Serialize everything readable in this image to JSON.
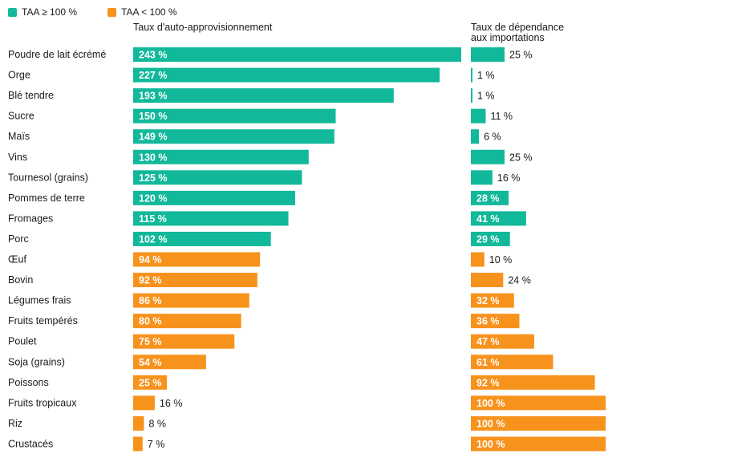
{
  "legend": {
    "items": [
      {
        "label": "TAA ≥ 100 %",
        "color": "#12b89a"
      },
      {
        "label": "TAA < 100 %",
        "color": "#f7921c"
      }
    ]
  },
  "panels": {
    "left_title": "Taux d'auto-approvisionnement",
    "right_title_line1": "Taux de dépendance",
    "right_title_line2": "aux importations"
  },
  "chart_data": {
    "type": "bar",
    "orientation": "horizontal",
    "categories": [
      "Poudre de lait écrémé",
      "Orge",
      "Blé tendre",
      "Sucre",
      "Maïs",
      "Vins",
      "Tournesol (grains)",
      "Pommes de terre",
      "Fromages",
      "Porc",
      "Œuf",
      "Bovin",
      "Légumes frais",
      "Fruits tempérés",
      "Poulet",
      "Soja (grains)",
      "Poissons",
      "Fruits tropicaux",
      "Riz",
      "Crustacés"
    ],
    "series": [
      {
        "name": "Taux d'auto-approvisionnement",
        "values": [
          243,
          227,
          193,
          150,
          149,
          130,
          125,
          120,
          115,
          102,
          94,
          92,
          86,
          80,
          75,
          54,
          25,
          16,
          8,
          7
        ],
        "labels": [
          "243 %",
          "227 %",
          "193 %",
          "150 %",
          "149 %",
          "130 %",
          "125 %",
          "120 %",
          "115 %",
          "102 %",
          "94 %",
          "92 %",
          "86 %",
          "80 %",
          "75 %",
          "54 %",
          "25 %",
          "16 %",
          "8 %",
          "7 %"
        ]
      },
      {
        "name": "Taux de dépendance aux importations",
        "values": [
          25,
          1,
          1,
          11,
          6,
          25,
          16,
          28,
          41,
          29,
          10,
          24,
          32,
          36,
          47,
          61,
          92,
          100,
          100,
          100
        ],
        "labels": [
          "25 %",
          "1 %",
          "1 %",
          "11 %",
          "6 %",
          "25 %",
          "16 %",
          "28 %",
          "41 %",
          "29 %",
          "10 %",
          "24 %",
          "32 %",
          "36 %",
          "47 %",
          "61 %",
          "92 %",
          "100 %",
          "100 %",
          "100 %"
        ]
      }
    ],
    "threshold": 100,
    "colors": {
      "above": "#12b89a",
      "below": "#f7921c"
    },
    "left_xlim": [
      0,
      243
    ],
    "right_xlim": [
      0,
      100
    ]
  }
}
